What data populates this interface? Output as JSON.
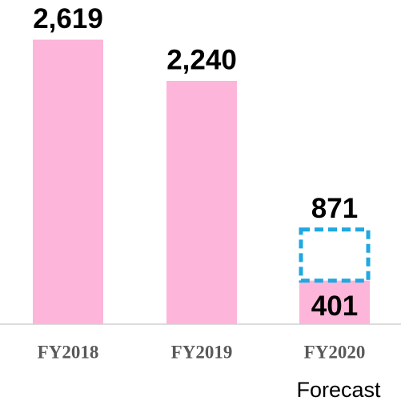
{
  "chart_data": {
    "type": "bar",
    "categories": [
      "FY2018",
      "FY2019",
      "FY2020"
    ],
    "category_sublabels": [
      null,
      null,
      "Forecast"
    ],
    "series": [
      {
        "color": "#fdb5da",
        "values": [
          2619,
          2240,
          401
        ],
        "value_labels": [
          "2,619",
          "2,240",
          "401"
        ]
      },
      {
        "color": "#1fa8e1",
        "style": "dashed-outline",
        "values": [
          null,
          null,
          871
        ],
        "value_labels": [
          null,
          null,
          "871"
        ]
      }
    ],
    "ylim": [
      0,
      2800
    ],
    "grid": false
  }
}
